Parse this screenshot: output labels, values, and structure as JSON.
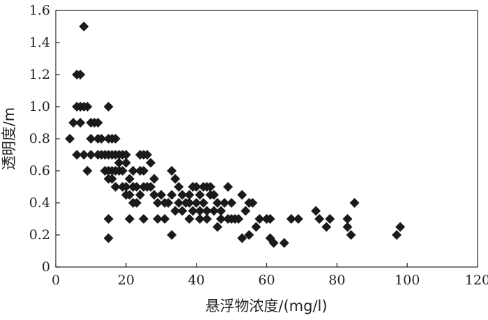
{
  "chart_data": {
    "type": "scatter",
    "title": "",
    "xlabel": "悬浮物浓度/(mg/l)",
    "ylabel": "透明度/m",
    "xlim": [
      0,
      120
    ],
    "ylim": [
      0,
      1.6
    ],
    "xticks": [
      0,
      20,
      40,
      60,
      80,
      100,
      120
    ],
    "yticks": [
      0,
      0.2,
      0.4,
      0.6,
      0.8,
      1.0,
      1.2,
      1.4,
      1.6
    ],
    "xtick_labels": [
      "0",
      "20",
      "40",
      "60",
      "80",
      "100",
      "120"
    ],
    "ytick_labels": [
      "0",
      "0.2",
      "0.4",
      "0.6",
      "0.8",
      "1.0",
      "1.2",
      "1.4",
      "1.6"
    ],
    "grid": false,
    "marker": "diamond",
    "marker_color": "#1a1a1a",
    "series": [
      {
        "points": [
          [
            4,
            0.8
          ],
          [
            5,
            0.9
          ],
          [
            6,
            1.2
          ],
          [
            7,
            1.2
          ],
          [
            6,
            1.0
          ],
          [
            7,
            1.0
          ],
          [
            8,
            1.0
          ],
          [
            9,
            1.0
          ],
          [
            8,
            1.5
          ],
          [
            7,
            0.9
          ],
          [
            10,
            0.9
          ],
          [
            11,
            0.9
          ],
          [
            12,
            0.9
          ],
          [
            6,
            0.7
          ],
          [
            8,
            0.7
          ],
          [
            10,
            0.7
          ],
          [
            12,
            0.7
          ],
          [
            9,
            0.6
          ],
          [
            10,
            0.8
          ],
          [
            12,
            0.8
          ],
          [
            13,
            0.8
          ],
          [
            15,
            0.8
          ],
          [
            16,
            0.8
          ],
          [
            17,
            0.8
          ],
          [
            15,
            1.0
          ],
          [
            13,
            0.7
          ],
          [
            14,
            0.7
          ],
          [
            15,
            0.7
          ],
          [
            16,
            0.7
          ],
          [
            17,
            0.7
          ],
          [
            18,
            0.7
          ],
          [
            19,
            0.7
          ],
          [
            20,
            0.7
          ],
          [
            14,
            0.6
          ],
          [
            15,
            0.6
          ],
          [
            16,
            0.6
          ],
          [
            17,
            0.6
          ],
          [
            18,
            0.6
          ],
          [
            19,
            0.6
          ],
          [
            15,
            0.55
          ],
          [
            16,
            0.55
          ],
          [
            17,
            0.5
          ],
          [
            18,
            0.65
          ],
          [
            20,
            0.65
          ],
          [
            22,
            0.6
          ],
          [
            24,
            0.7
          ],
          [
            25,
            0.7
          ],
          [
            26,
            0.7
          ],
          [
            27,
            0.65
          ],
          [
            19,
            0.5
          ],
          [
            20,
            0.5
          ],
          [
            21,
            0.55
          ],
          [
            22,
            0.5
          ],
          [
            23,
            0.5
          ],
          [
            24,
            0.6
          ],
          [
            25,
            0.6
          ],
          [
            26,
            0.5
          ],
          [
            28,
            0.55
          ],
          [
            20,
            0.45
          ],
          [
            21,
            0.45
          ],
          [
            22,
            0.4
          ],
          [
            23,
            0.4
          ],
          [
            24,
            0.45
          ],
          [
            25,
            0.5
          ],
          [
            27,
            0.5
          ],
          [
            28,
            0.45
          ],
          [
            29,
            0.4
          ],
          [
            30,
            0.45
          ],
          [
            31,
            0.4
          ],
          [
            32,
            0.4
          ],
          [
            15,
            0.3
          ],
          [
            15,
            0.18
          ],
          [
            21,
            0.3
          ],
          [
            25,
            0.3
          ],
          [
            29,
            0.3
          ],
          [
            31,
            0.3
          ],
          [
            33,
            0.6
          ],
          [
            34,
            0.55
          ],
          [
            35,
            0.5
          ],
          [
            33,
            0.45
          ],
          [
            34,
            0.35
          ],
          [
            35,
            0.4
          ],
          [
            36,
            0.35
          ],
          [
            37,
            0.4
          ],
          [
            36,
            0.45
          ],
          [
            38,
            0.45
          ],
          [
            39,
            0.5
          ],
          [
            40,
            0.5
          ],
          [
            41,
            0.45
          ],
          [
            42,
            0.5
          ],
          [
            43,
            0.5
          ],
          [
            44,
            0.5
          ],
          [
            38,
            0.4
          ],
          [
            39,
            0.35
          ],
          [
            40,
            0.4
          ],
          [
            41,
            0.35
          ],
          [
            42,
            0.4
          ],
          [
            43,
            0.35
          ],
          [
            44,
            0.45
          ],
          [
            45,
            0.45
          ],
          [
            46,
            0.4
          ],
          [
            47,
            0.35
          ],
          [
            48,
            0.4
          ],
          [
            49,
            0.5
          ],
          [
            50,
            0.4
          ],
          [
            38,
            0.3
          ],
          [
            41,
            0.3
          ],
          [
            43,
            0.3
          ],
          [
            45,
            0.35
          ],
          [
            46,
            0.25
          ],
          [
            47,
            0.3
          ],
          [
            49,
            0.3
          ],
          [
            50,
            0.3
          ],
          [
            51,
            0.3
          ],
          [
            52,
            0.3
          ],
          [
            33,
            0.2
          ],
          [
            53,
            0.45
          ],
          [
            54,
            0.35
          ],
          [
            55,
            0.4
          ],
          [
            56,
            0.4
          ],
          [
            53,
            0.18
          ],
          [
            55,
            0.2
          ],
          [
            57,
            0.25
          ],
          [
            58,
            0.3
          ],
          [
            60,
            0.3
          ],
          [
            61,
            0.3
          ],
          [
            61,
            0.18
          ],
          [
            62,
            0.15
          ],
          [
            65,
            0.15
          ],
          [
            67,
            0.3
          ],
          [
            69,
            0.3
          ],
          [
            74,
            0.35
          ],
          [
            75,
            0.3
          ],
          [
            77,
            0.25
          ],
          [
            78,
            0.3
          ],
          [
            83,
            0.3
          ],
          [
            83,
            0.25
          ],
          [
            84,
            0.2
          ],
          [
            85,
            0.4
          ],
          [
            97,
            0.2
          ],
          [
            98,
            0.25
          ]
        ]
      }
    ]
  }
}
